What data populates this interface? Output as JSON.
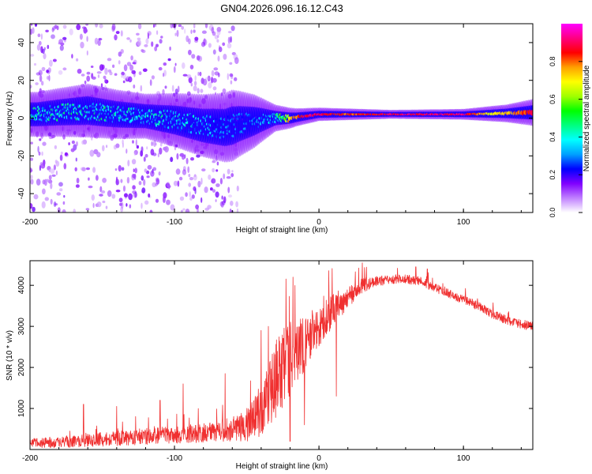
{
  "figure_title": "GN04.2026.096.16.12.C43",
  "chart_data": [
    {
      "type": "heatmap",
      "title": "GN04.2026.096.16.12.C43",
      "xlabel": "Height of straight line (km)",
      "ylabel": "Frequency (Hz)",
      "xlim": [
        -200,
        148
      ],
      "ylim": [
        -50,
        50
      ],
      "xticks": [
        -200,
        -100,
        0,
        100
      ],
      "yticks": [
        -40,
        -20,
        0,
        20,
        40
      ],
      "colorbar": {
        "label": "Normalized spectral amplitude",
        "range": [
          0,
          1
        ],
        "ticks": [
          "0.0",
          "0.2",
          "0.4",
          "0.6",
          "0.8"
        ],
        "colormap": [
          "#ffffff",
          "#c080ff",
          "#8000ff",
          "#0000ff",
          "#00a0ff",
          "#00ffff",
          "#00ff80",
          "#00ff00",
          "#a0ff00",
          "#ffff00",
          "#ffa000",
          "#ff0000",
          "#ff0080",
          "#ff00ff"
        ]
      },
      "band_center_hz": [
        [
          -195,
          2
        ],
        [
          -180,
          3
        ],
        [
          -160,
          4
        ],
        [
          -140,
          2
        ],
        [
          -120,
          1
        ],
        [
          -100,
          -1
        ],
        [
          -80,
          -4
        ],
        [
          -65,
          -5
        ],
        [
          -55,
          -3
        ],
        [
          -40,
          -1
        ],
        [
          -30,
          0
        ],
        [
          -20,
          0
        ],
        [
          -10,
          1
        ],
        [
          0,
          2
        ],
        [
          10,
          2
        ],
        [
          30,
          2
        ],
        [
          60,
          2
        ],
        [
          100,
          2
        ],
        [
          130,
          2.5
        ],
        [
          148,
          3
        ]
      ],
      "band_halfwidth_hz": [
        [
          -195,
          5
        ],
        [
          -160,
          6
        ],
        [
          -120,
          5
        ],
        [
          -80,
          7
        ],
        [
          -60,
          8
        ],
        [
          -45,
          6
        ],
        [
          -30,
          3
        ],
        [
          -15,
          2
        ],
        [
          0,
          1.5
        ],
        [
          50,
          1
        ],
        [
          100,
          1.2
        ],
        [
          130,
          2
        ],
        [
          148,
          3
        ]
      ],
      "band_peak_amplitude": [
        [
          -195,
          0.45
        ],
        [
          -160,
          0.45
        ],
        [
          -120,
          0.42
        ],
        [
          -100,
          0.42
        ],
        [
          -80,
          0.38
        ],
        [
          -60,
          0.32
        ],
        [
          -45,
          0.3
        ],
        [
          -30,
          0.42
        ],
        [
          -20,
          0.75
        ],
        [
          -10,
          0.92
        ],
        [
          0,
          0.95
        ],
        [
          20,
          0.85
        ],
        [
          60,
          0.95
        ],
        [
          100,
          0.95
        ],
        [
          120,
          0.7
        ],
        [
          148,
          0.9
        ]
      ],
      "scatter_region_km": [
        -200,
        -55
      ]
    },
    {
      "type": "line",
      "xlabel": "Height of straight line (km)",
      "ylabel": "SNR (10 * v/v)",
      "xlim": [
        -200,
        148
      ],
      "ylim": [
        0,
        4600
      ],
      "xticks": [
        -200,
        -100,
        0,
        100
      ],
      "yticks": [
        1000,
        2000,
        3000,
        4000
      ],
      "line_color": "#f03030",
      "envelope": {
        "x": [
          -200,
          -180,
          -160,
          -140,
          -120,
          -100,
          -80,
          -60,
          -50,
          -40,
          -35,
          -30,
          -25,
          -20,
          -15,
          -10,
          -5,
          0,
          5,
          10,
          20,
          30,
          40,
          50,
          60,
          70,
          80,
          90,
          100,
          110,
          120,
          130,
          140,
          148
        ],
        "mean": [
          150,
          180,
          220,
          270,
          320,
          360,
          410,
          450,
          600,
          900,
          1300,
          1700,
          2000,
          2200,
          2400,
          2600,
          2800,
          3000,
          3200,
          3400,
          3700,
          4000,
          4100,
          4150,
          4150,
          4100,
          3950,
          3800,
          3650,
          3500,
          3300,
          3150,
          3050,
          3000
        ],
        "spread": [
          120,
          140,
          160,
          180,
          200,
          220,
          240,
          260,
          400,
          700,
          900,
          1000,
          1000,
          900,
          800,
          700,
          600,
          500,
          450,
          400,
          250,
          180,
          130,
          110,
          110,
          110,
          110,
          110,
          110,
          110,
          110,
          110,
          110,
          110
        ]
      },
      "spikes": [
        {
          "x": -163,
          "y": 1100
        },
        {
          "x": -140,
          "y": 1050
        },
        {
          "x": -110,
          "y": 1200
        },
        {
          "x": -94,
          "y": 1600
        },
        {
          "x": -65,
          "y": 1850
        },
        {
          "x": -40,
          "y": 2900
        },
        {
          "x": -35,
          "y": 3000
        },
        {
          "x": -18,
          "y": 4200
        },
        {
          "x": 12,
          "y": 4600
        },
        {
          "x": 30,
          "y": 4550
        },
        {
          "x": 67,
          "y": 4450
        },
        {
          "x": 75,
          "y": 4400
        }
      ],
      "dips": [
        {
          "x": 12,
          "y": 1300
        },
        {
          "x": -20,
          "y": 200
        },
        {
          "x": -10,
          "y": 600
        }
      ]
    }
  ]
}
